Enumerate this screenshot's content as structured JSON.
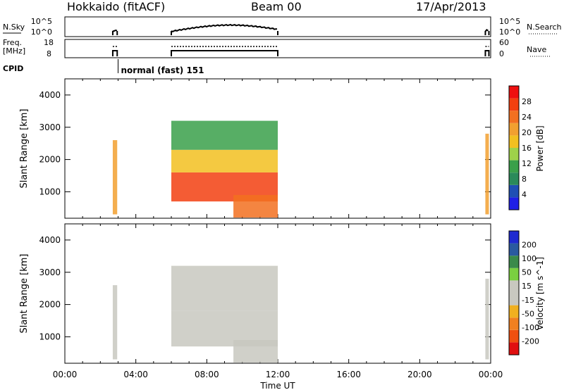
{
  "header": {
    "title": "Hokkaido (fitACF)",
    "beam": "Beam 00",
    "date": "17/Apr/2013"
  },
  "colors": {
    "line": "#000000",
    "power_scale": [
      "#1f1fe6",
      "#1f4fb4",
      "#2a8a5a",
      "#3aa04a",
      "#9ed24a",
      "#f2c020",
      "#f2a030",
      "#f27020",
      "#f24010",
      "#ee1010"
    ],
    "velocity_scale": [
      "#e01010",
      "#f05010",
      "#f08020",
      "#f0b020",
      "#c8c8c0",
      "#c8c8c0",
      "#7ad040",
      "#3a8a4a",
      "#2a5aa0",
      "#1f2ad0"
    ]
  },
  "chart_data": [
    {
      "type": "line",
      "panel": "noise",
      "ylabel": "N.Sky",
      "ytick_labels": [
        "10^5",
        "10^0"
      ],
      "right_label": "N.Search",
      "right_ytick_labels": [
        "10^5",
        "10^0"
      ],
      "xlim": [
        "00:00",
        "24:00"
      ],
      "description_series": [
        {
          "segments": [
            [
              "02:40",
              "02:55"
            ],
            [
              "06:00",
              "12:00"
            ],
            [
              "23:45",
              "23:55"
            ]
          ]
        }
      ]
    },
    {
      "type": "line",
      "panel": "freq_nave",
      "ylabel": "Freq. [MHz]",
      "ytick_labels": [
        "18",
        "8"
      ],
      "right_label": "Nave",
      "right_ytick_labels": [
        "60",
        "0"
      ],
      "xlim": [
        "00:00",
        "24:00"
      ]
    },
    {
      "type": "annotation",
      "panel": "cpid",
      "label": "CPID",
      "marker_time": "03:00",
      "text": "normal (fast) 151"
    },
    {
      "type": "heatmap",
      "panel": "power",
      "ylabel": "Slant Range [km]",
      "y_ticks": [
        1000,
        2000,
        3000,
        4000
      ],
      "ylim": [
        180,
        4500
      ],
      "xlim": [
        0,
        24
      ],
      "colorbar_label": "Power [dB]",
      "colorbar_ticks": [
        "28",
        "24",
        "20",
        "16",
        "12",
        "8",
        "4"
      ],
      "colorbar_range": [
        0,
        32
      ],
      "data_blocks": [
        {
          "t0": 2.7,
          "t1": 2.95,
          "r0": 300,
          "r1": 2600,
          "level": 20
        },
        {
          "t0": 6.0,
          "t1": 12.0,
          "r0": 700,
          "r1": 1600,
          "level": 26
        },
        {
          "t0": 6.0,
          "t1": 12.0,
          "r0": 1600,
          "r1": 2300,
          "level": 18
        },
        {
          "t0": 6.0,
          "t1": 12.0,
          "r0": 2300,
          "r1": 3200,
          "level": 12
        },
        {
          "t0": 9.5,
          "t1": 12.0,
          "r0": 200,
          "r1": 900,
          "level": 24
        },
        {
          "t0": 23.7,
          "t1": 23.9,
          "r0": 300,
          "r1": 2800,
          "level": 22
        }
      ]
    },
    {
      "type": "heatmap",
      "panel": "velocity",
      "ylabel": "Slant Range [km]",
      "y_ticks": [
        1000,
        2000,
        3000,
        4000
      ],
      "ylim": [
        180,
        4500
      ],
      "xlim": [
        0,
        24
      ],
      "colorbar_label": "Velocity [m s^-1]",
      "colorbar_ticks": [
        "200",
        "100",
        "50",
        "15",
        "-15",
        "-50",
        "-100",
        "-200"
      ],
      "x_ticks": [
        "00:00",
        "04:00",
        "08:00",
        "12:00",
        "16:00",
        "20:00",
        "00:00"
      ],
      "xlabel": "Time UT",
      "data_blocks": [
        {
          "t0": 2.7,
          "t1": 2.95,
          "r0": 300,
          "r1": 2600,
          "level": 0
        },
        {
          "t0": 6.0,
          "t1": 12.0,
          "r0": 700,
          "r1": 1800,
          "level": 0
        },
        {
          "t0": 6.0,
          "t1": 12.0,
          "r0": 1800,
          "r1": 3200,
          "level": 0
        },
        {
          "t0": 9.5,
          "t1": 12.0,
          "r0": 200,
          "r1": 900,
          "level": 0
        },
        {
          "t0": 23.7,
          "t1": 23.9,
          "r0": 300,
          "r1": 2800,
          "level": 0
        }
      ]
    }
  ]
}
